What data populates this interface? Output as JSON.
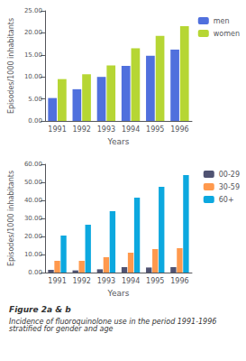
{
  "chart_data": [
    {
      "type": "bar",
      "categories": [
        "1991",
        "1992",
        "1993",
        "1994",
        "1995",
        "1996"
      ],
      "xlabel": "Years",
      "ylabel": "Episodes/1000 inhabitants",
      "ylim": [
        0,
        25
      ],
      "yticks": [
        {
          "value": 0,
          "label": "0.00"
        },
        {
          "value": 5.0,
          "label": "5.00"
        },
        {
          "value": 10.0,
          "label": "10.00"
        },
        {
          "value": 15.0,
          "label": "15.00"
        },
        {
          "value": 20.0,
          "label": "20.00"
        },
        {
          "value": 25.0,
          "label": "25.00"
        }
      ],
      "series": [
        {
          "name": "men",
          "values": [
            5.2,
            7.2,
            10.0,
            12.5,
            14.8,
            16.2
          ]
        },
        {
          "name": "women",
          "values": [
            9.5,
            10.6,
            12.6,
            16.5,
            19.3,
            21.5
          ]
        }
      ],
      "legend": "right",
      "grid": false
    },
    {
      "type": "bar",
      "categories": [
        "1991",
        "1992",
        "1993",
        "1994",
        "1995",
        "1996"
      ],
      "xlabel": "Years",
      "ylabel": "Episodes/1000 inhabitants",
      "ylim": [
        0,
        60
      ],
      "yticks": [
        {
          "value": 0,
          "label": "0.00"
        },
        {
          "value": 10.0,
          "label": "10.00"
        },
        {
          "value": 20.0,
          "label": "20.00"
        },
        {
          "value": 30.0,
          "label": "30.00"
        },
        {
          "value": 40.0,
          "label": "40.00"
        },
        {
          "value": 50.0,
          "label": "50.00"
        },
        {
          "value": 60.0,
          "label": "60.00"
        }
      ],
      "series": [
        {
          "name": "00-29",
          "values": [
            1.5,
            1.2,
            1.8,
            3.0,
            2.8,
            3.0
          ]
        },
        {
          "name": "30-59",
          "values": [
            6.5,
            6.5,
            8.5,
            11.0,
            13.0,
            13.5
          ]
        },
        {
          "name": "60+",
          "values": [
            20.5,
            26.5,
            34.0,
            41.5,
            47.5,
            54.0
          ]
        }
      ],
      "legend": "right",
      "grid": false,
      "annotations": [
        "Figure 2a & b",
        "Incidence of fluoroquinolone use in the period 1991-1996 stratified for gender and age"
      ]
    }
  ]
}
